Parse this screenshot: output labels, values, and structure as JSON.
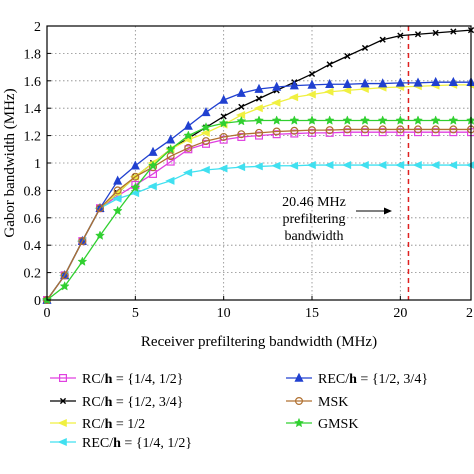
{
  "chart_data": {
    "type": "line",
    "title": "",
    "xlabel": "Receiver prefiltering bandwidth (MHz)",
    "ylabel": "Gabor bandwidth (MHz)",
    "xlim": [
      0,
      24
    ],
    "ylim": [
      0,
      2
    ],
    "x_ticks": [
      "0",
      "5",
      "10",
      "15",
      "20",
      "2"
    ],
    "y_ticks": [
      "0",
      "0.2",
      "0.4",
      "0.6",
      "0.8",
      "1",
      "1.2",
      "1.4",
      "1.6",
      "1.8",
      "2"
    ],
    "grid": true,
    "x": [
      0,
      1,
      2,
      3,
      4,
      5,
      6,
      7,
      8,
      9,
      10,
      11,
      12,
      13,
      14,
      15,
      16,
      17,
      18,
      19,
      20,
      21,
      22,
      23,
      24
    ],
    "series": [
      {
        "label_prefix": "RC/",
        "label_h": "h",
        "label_suffix": " = {1/4, 1/2}",
        "color": "#e040e0",
        "marker": "square",
        "values": [
          0,
          0.18,
          0.43,
          0.67,
          0.76,
          0.84,
          0.92,
          1.01,
          1.1,
          1.14,
          1.17,
          1.19,
          1.2,
          1.21,
          1.215,
          1.22,
          1.22,
          1.225,
          1.225,
          1.225,
          1.225,
          1.225,
          1.225,
          1.225,
          1.225
        ]
      },
      {
        "label_prefix": "RC/",
        "label_h": "h",
        "label_suffix": " = {1/2, 3/4}",
        "color": "#000000",
        "marker": "x",
        "values": [
          0,
          0.18,
          0.43,
          0.67,
          0.78,
          0.9,
          1.0,
          1.1,
          1.18,
          1.26,
          1.34,
          1.41,
          1.47,
          1.53,
          1.59,
          1.65,
          1.72,
          1.78,
          1.84,
          1.9,
          1.93,
          1.94,
          1.95,
          1.96,
          1.97
        ]
      },
      {
        "label_prefix": "RC/",
        "label_h": "h",
        "label_suffix": " = 1/2",
        "color": "#f0f040",
        "marker": "triangle-left",
        "values": [
          0,
          0.18,
          0.43,
          0.67,
          0.78,
          0.9,
          1.0,
          1.1,
          1.17,
          1.22,
          1.28,
          1.35,
          1.4,
          1.44,
          1.48,
          1.5,
          1.52,
          1.53,
          1.54,
          1.55,
          1.555,
          1.56,
          1.565,
          1.57,
          1.57
        ]
      },
      {
        "label_prefix": "REC/",
        "label_h": "h",
        "label_suffix": " = {1/4, 1/2}",
        "color": "#40e0f0",
        "marker": "triangle-left",
        "values": [
          0,
          0.18,
          0.43,
          0.67,
          0.74,
          0.78,
          0.83,
          0.87,
          0.93,
          0.95,
          0.96,
          0.97,
          0.975,
          0.98,
          0.98,
          0.985,
          0.985,
          0.985,
          0.985,
          0.985,
          0.985,
          0.985,
          0.985,
          0.985,
          0.985
        ]
      },
      {
        "label_prefix": "REC/",
        "label_h": "h",
        "label_suffix": " = {1/2, 3/4}",
        "color": "#2040d0",
        "marker": "triangle-up",
        "values": [
          0,
          0.18,
          0.43,
          0.67,
          0.87,
          0.98,
          1.08,
          1.17,
          1.27,
          1.37,
          1.46,
          1.51,
          1.54,
          1.555,
          1.565,
          1.57,
          1.575,
          1.575,
          1.58,
          1.58,
          1.585,
          1.585,
          1.59,
          1.59,
          1.59
        ]
      },
      {
        "label_prefix": "MSK",
        "label_h": "",
        "label_suffix": "",
        "color": "#b07030",
        "marker": "circle",
        "values": [
          0,
          0.18,
          0.43,
          0.67,
          0.8,
          0.9,
          0.97,
          1.05,
          1.11,
          1.16,
          1.19,
          1.21,
          1.22,
          1.23,
          1.235,
          1.24,
          1.24,
          1.245,
          1.245,
          1.245,
          1.245,
          1.245,
          1.245,
          1.245,
          1.245
        ]
      },
      {
        "label_prefix": "GMSK",
        "label_h": "",
        "label_suffix": "",
        "color": "#30d030",
        "marker": "star",
        "values": [
          0,
          0.1,
          0.28,
          0.47,
          0.65,
          0.82,
          0.98,
          1.1,
          1.2,
          1.26,
          1.29,
          1.305,
          1.31,
          1.31,
          1.31,
          1.31,
          1.31,
          1.31,
          1.31,
          1.31,
          1.31,
          1.31,
          1.31,
          1.31,
          1.31
        ]
      }
    ],
    "vline": {
      "x": 20.46,
      "color": "#e02020"
    },
    "annotation": {
      "lines": [
        "20.46 MHz",
        "prefiltering",
        "bandwidth"
      ]
    },
    "legend_placement": "bottom"
  }
}
